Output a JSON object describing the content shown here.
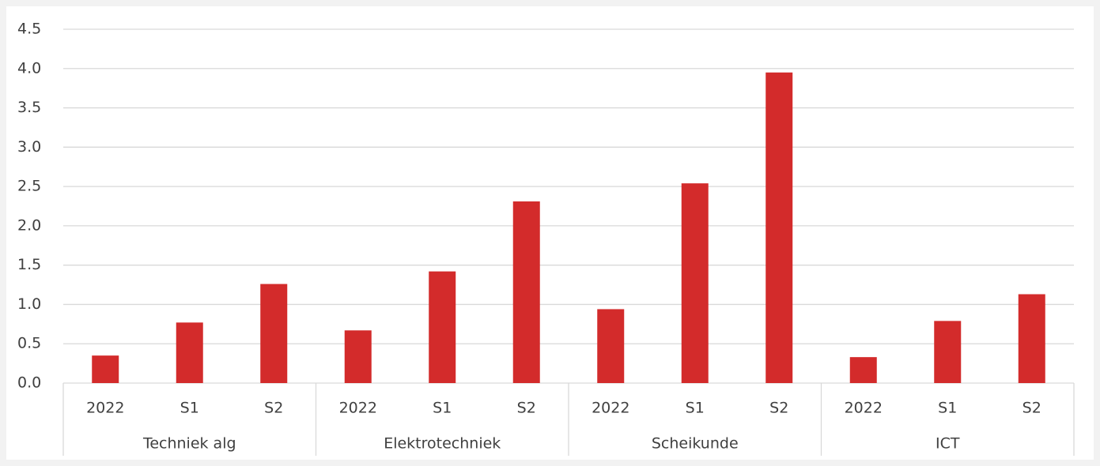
{
  "chart_data": {
    "type": "bar",
    "color": "#d32b2b",
    "grid": true,
    "groups": [
      {
        "name": "Techniek alg",
        "categories": [
          "2022",
          "S1",
          "S2"
        ],
        "values": [
          0.35,
          0.77,
          1.26
        ]
      },
      {
        "name": "Elektrotechniek",
        "categories": [
          "2022",
          "S1",
          "S2"
        ],
        "values": [
          0.67,
          1.42,
          2.31
        ]
      },
      {
        "name": "Scheikunde",
        "categories": [
          "2022",
          "S1",
          "S2"
        ],
        "values": [
          0.94,
          2.54,
          3.95
        ]
      },
      {
        "name": "ICT",
        "categories": [
          "2022",
          "S1",
          "S2"
        ],
        "values": [
          0.33,
          0.79,
          1.13
        ]
      }
    ],
    "ylim": [
      0,
      4.5
    ],
    "yticks": [
      {
        "value": 0,
        "label": "0.0"
      },
      0.5,
      {
        "value": 1,
        "label": "1.0"
      },
      1.5,
      {
        "value": 2,
        "label": "2.0"
      },
      2.5,
      {
        "value": 3,
        "label": "3.0"
      },
      3.5,
      {
        "value": 4,
        "label": "4.0"
      },
      4.5
    ]
  }
}
